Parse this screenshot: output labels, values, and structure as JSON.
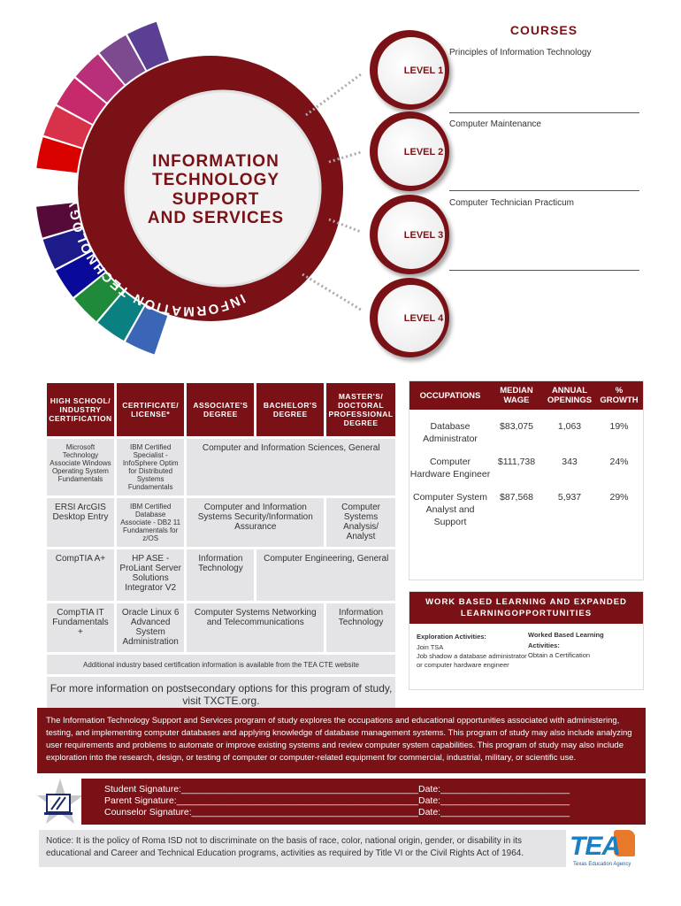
{
  "courses": {
    "title": "COURSES",
    "items": [
      "Principles of Information Technology",
      "Computer Maintenance",
      "Computer Technician Practicum"
    ],
    "levels": [
      "LEVEL 1",
      "LEVEL 2",
      "LEVEL 3",
      "LEVEL 4"
    ]
  },
  "cluster": {
    "ring_text": "INFORMATION TECHNOLOGY",
    "title_lines": [
      "INFORMATION",
      "TECHNOLOGY",
      "SUPPORT",
      "AND SERVICES"
    ],
    "segment_colors": [
      "#5b3f93",
      "#7e4a8f",
      "#b8307a",
      "#c62a6a",
      "#d8324a",
      "#d90000",
      "#560a3a",
      "#1d1a8a",
      "#0a0a9a",
      "#1f8a3a",
      "#0a8080",
      "#3a66b5"
    ]
  },
  "pathways": {
    "headers": [
      "HIGH SCHOOL/ INDUSTRY CERTIFICATION",
      "CERTIFICATE/ LICENSE*",
      "ASSOCIATE'S DEGREE",
      "BACHELOR'S DEGREE",
      "MASTER'S/ DOCTORAL PROFESSIONAL DEGREE"
    ],
    "r1": [
      "Microsoft Technology Associate Windows Operating System Fundamentals",
      "IBM Certified Specialist - InfoSphere Optim for Distributed Systems Fundamentals",
      "Computer and Information Sciences, General"
    ],
    "r2": [
      "ERSI ArcGIS Desktop Entry",
      "IBM Certified Database Associate - DB2 11 Fundamentals for z/OS",
      "Computer and Information Systems Security/Information Assurance",
      "Computer Systems Analysis/ Analyst"
    ],
    "r3": [
      "CompTIA A+",
      "HP ASE - ProLiant Server Solutions Integrator V2",
      "Information Technology",
      "Computer Engineering, General"
    ],
    "r4": [
      "CompTIA IT Fundamentals +",
      "Oracle Linux 6 Advanced System Administration",
      "Computer Systems Networking and Telecommunications",
      "Information Technology"
    ],
    "note": "Additional industry based certification information is available from the TEA CTE website",
    "more_info": "For more information on postsecondary options for this program of study, visit TXCTE.org."
  },
  "occupations": {
    "headers": [
      "OCCUPATIONS",
      "MEDIAN WAGE",
      "ANNUAL OPENINGS",
      "% GROWTH"
    ],
    "rows": [
      [
        "Database Administrator",
        "$83,075",
        "1,063",
        "19%"
      ],
      [
        "Computer Hardware Engineer",
        "$111,738",
        "343",
        "24%"
      ],
      [
        "Computer System Analyst and Support",
        "$87,568",
        "5,937",
        "29%"
      ]
    ]
  },
  "wbl": {
    "title": "WORK BASED LEARNING AND EXPANDED LEARNINGOPPORTUNITIES",
    "exploration_label": "Exploration Activities:",
    "exploration_items": [
      "Join TSA",
      "Job shadow a database administrator or computer hardware engineer"
    ],
    "worked_label": "Worked Based Learning Activities:",
    "worked_items": [
      "Obtain a Certification"
    ]
  },
  "description": "The Information Technology Support and Services program of study explores the occupations and educational opportunities associated with administering, testing, and implementing computer databases and applying knowledge of database management systems. This program of study may also include analyzing user requirements and problems to automate or improve existing systems and review computer system capabilities. This program of study may also include exploration into the research, design, or testing of computer or computer-related equipment for commercial, industrial, military, or scientific use.",
  "signatures": {
    "student": "Student Signature:______________________________________________",
    "parent": "Parent Signature:_______________________________________________",
    "counselor": "Counselor Signature:____________________________________________",
    "date": "Date:_________________________"
  },
  "notice": "Notice: It is the policy of Roma ISD not to discriminate on the basis of race, color, national origin, gender, or disability in its educational and Career and Technical Education programs, activities as required by Title VI or the Civil Rights Act of 1964.",
  "logo": {
    "text": "TEA",
    "subtitle": "Texas Education Agency"
  }
}
